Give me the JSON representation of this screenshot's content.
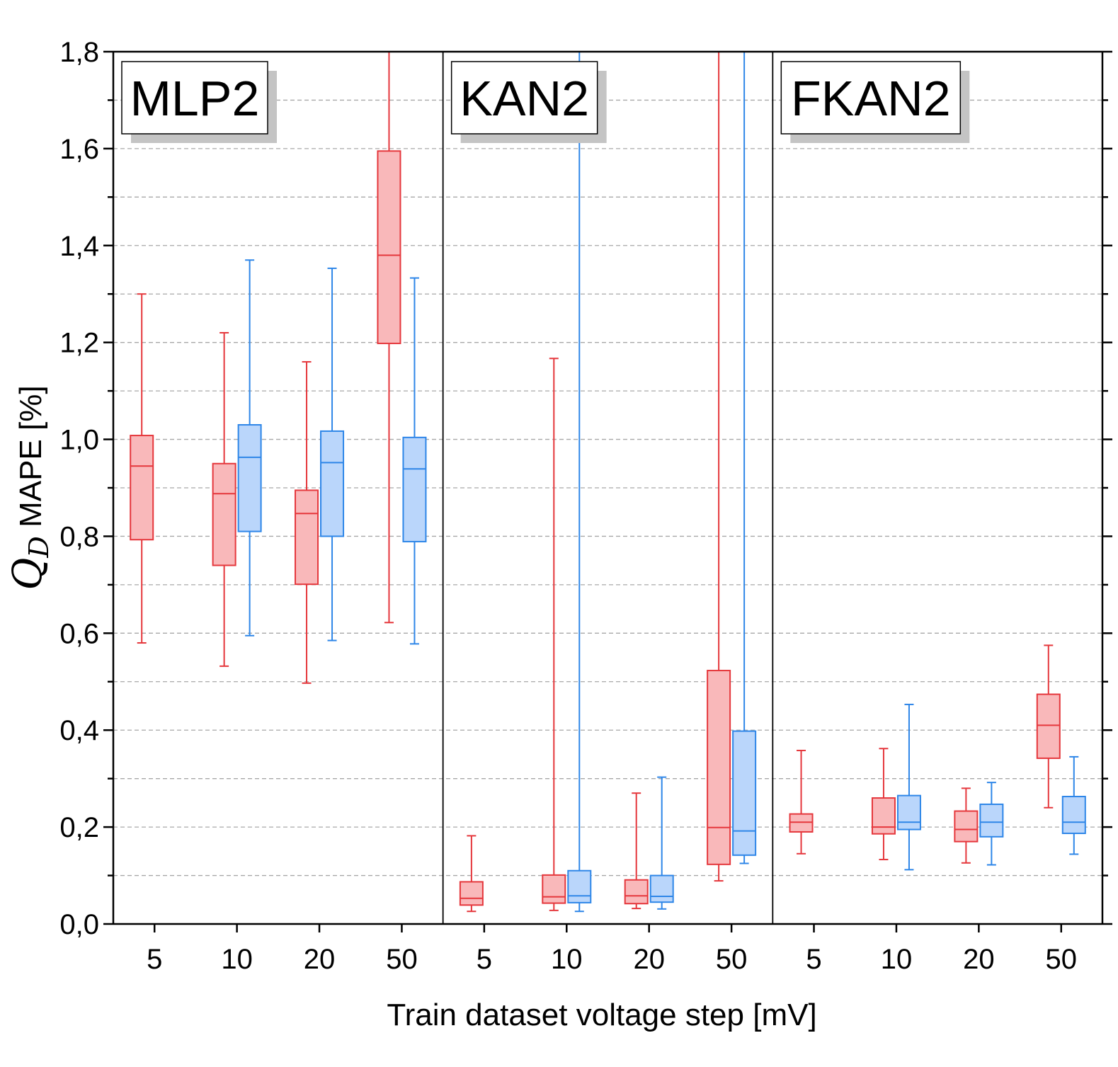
{
  "chart_data": {
    "type": "box",
    "xlabel": "Train dataset voltage step [mV]",
    "ylabel": {
      "symbol": "Q",
      "subscript": "D",
      "text": " MAPE [%]"
    },
    "ylim": [
      0,
      1.8
    ],
    "yticks": [
      "0,0",
      "0,2",
      "0,4",
      "0,6",
      "0,8",
      "1,0",
      "1,2",
      "1,4",
      "1,6",
      "1,8"
    ],
    "grid": "dashed-horizontal",
    "categories": [
      "5",
      "10",
      "20",
      "50"
    ],
    "colors": {
      "red_fill": "#f9b8ba",
      "red_line": "#e5373c",
      "blue_fill": "#bad6fb",
      "blue_line": "#2e86e8"
    },
    "panels": [
      {
        "title": "MLP2",
        "groups": [
          {
            "category": "5",
            "red": {
              "min": 0.58,
              "q1": 0.793,
              "median": 0.945,
              "q3": 1.008,
              "max": 1.3
            },
            "blue": null
          },
          {
            "category": "10",
            "red": {
              "min": 0.532,
              "q1": 0.74,
              "median": 0.888,
              "q3": 0.95,
              "max": 1.22
            },
            "blue": {
              "min": 0.595,
              "q1": 0.81,
              "median": 0.963,
              "q3": 1.03,
              "max": 1.37
            }
          },
          {
            "category": "20",
            "red": {
              "min": 0.497,
              "q1": 0.701,
              "median": 0.847,
              "q3": 0.895,
              "max": 1.16
            },
            "blue": {
              "min": 0.585,
              "q1": 0.8,
              "median": 0.952,
              "q3": 1.017,
              "max": 1.353
            }
          },
          {
            "category": "50",
            "red": {
              "min": 0.622,
              "q1": 1.198,
              "median": 1.38,
              "q3": 1.595,
              "max": 1.8
            },
            "blue": {
              "min": 0.578,
              "q1": 0.789,
              "median": 0.939,
              "q3": 1.004,
              "max": 1.333
            }
          }
        ]
      },
      {
        "title": "KAN2",
        "groups": [
          {
            "category": "5",
            "red": {
              "min": 0.026,
              "q1": 0.039,
              "median": 0.053,
              "q3": 0.087,
              "max": 0.182
            },
            "blue": null
          },
          {
            "category": "10",
            "red": {
              "min": 0.028,
              "q1": 0.043,
              "median": 0.056,
              "q3": 0.101,
              "max": 1.167
            },
            "blue": {
              "min": 0.026,
              "q1": 0.044,
              "median": 0.058,
              "q3": 0.11,
              "max": 1.8
            }
          },
          {
            "category": "20",
            "red": {
              "min": 0.032,
              "q1": 0.042,
              "median": 0.058,
              "q3": 0.091,
              "max": 0.27
            },
            "blue": {
              "min": 0.031,
              "q1": 0.045,
              "median": 0.057,
              "q3": 0.1,
              "max": 0.303
            }
          },
          {
            "category": "50",
            "red": {
              "min": 0.089,
              "q1": 0.123,
              "median": 0.199,
              "q3": 0.523,
              "max": 1.8
            },
            "blue": {
              "min": 0.125,
              "q1": 0.142,
              "median": 0.192,
              "q3": 0.398,
              "max": 1.8
            }
          }
        ]
      },
      {
        "title": "FKAN2",
        "groups": [
          {
            "category": "5",
            "red": {
              "min": 0.145,
              "q1": 0.19,
              "median": 0.21,
              "q3": 0.227,
              "max": 0.358
            },
            "blue": null
          },
          {
            "category": "10",
            "red": {
              "min": 0.133,
              "q1": 0.186,
              "median": 0.2,
              "q3": 0.26,
              "max": 0.362
            },
            "blue": {
              "min": 0.112,
              "q1": 0.195,
              "median": 0.21,
              "q3": 0.265,
              "max": 0.453
            }
          },
          {
            "category": "20",
            "red": {
              "min": 0.126,
              "q1": 0.17,
              "median": 0.195,
              "q3": 0.233,
              "max": 0.28
            },
            "blue": {
              "min": 0.122,
              "q1": 0.18,
              "median": 0.21,
              "q3": 0.247,
              "max": 0.292
            }
          },
          {
            "category": "50",
            "red": {
              "min": 0.24,
              "q1": 0.342,
              "median": 0.41,
              "q3": 0.474,
              "max": 0.575
            },
            "blue": {
              "min": 0.144,
              "q1": 0.187,
              "median": 0.21,
              "q3": 0.263,
              "max": 0.345
            }
          }
        ]
      }
    ]
  }
}
